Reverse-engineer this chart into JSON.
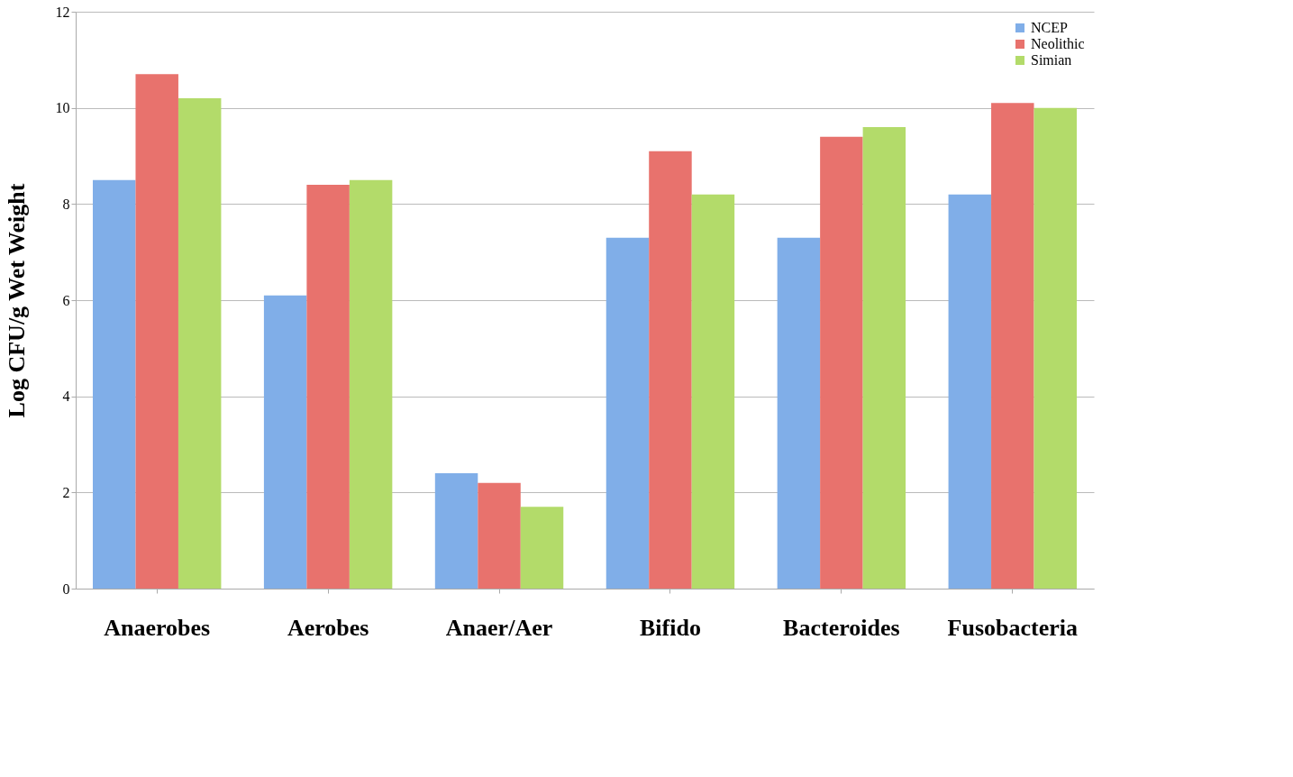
{
  "chart_data": {
    "type": "bar",
    "ylabel": "Log CFU/g Wet Weight",
    "categories": [
      "Anaerobes",
      "Aerobes",
      "Anaer/Aer",
      "Bifido",
      "Bacteroides",
      "Fusobacteria"
    ],
    "series": [
      {
        "name": "NCEP",
        "color": "#80aee8",
        "values": [
          8.5,
          6.1,
          2.4,
          7.3,
          7.3,
          8.2
        ]
      },
      {
        "name": "Neolithic",
        "color": "#e8726d",
        "values": [
          10.7,
          8.4,
          2.2,
          9.1,
          9.4,
          10.1
        ]
      },
      {
        "name": "Simian",
        "color": "#b3db6a",
        "values": [
          10.2,
          8.5,
          1.7,
          8.2,
          9.6,
          10.0
        ]
      }
    ],
    "ylim": [
      0,
      12
    ],
    "yticks": [
      0,
      2,
      4,
      6,
      8,
      10,
      12
    ],
    "grid": "y",
    "legend": "top right"
  }
}
